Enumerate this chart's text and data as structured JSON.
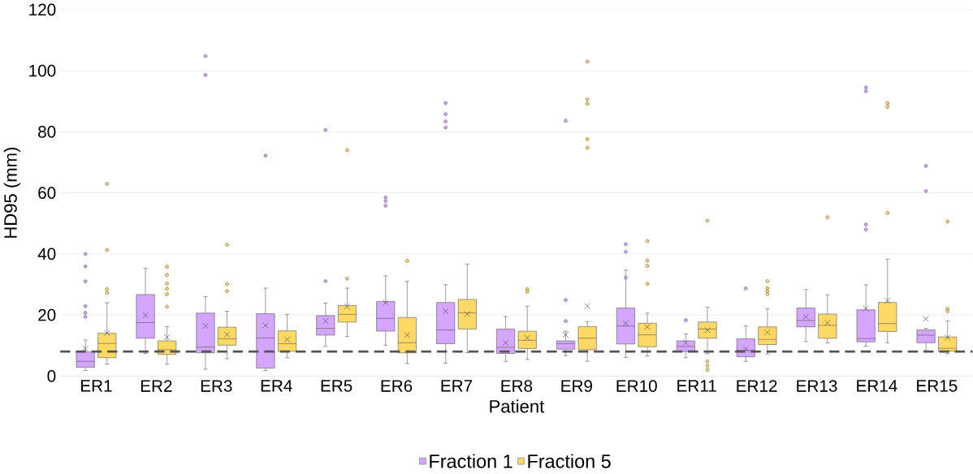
{
  "chart_data": {
    "type": "box",
    "xlabel": "Patient",
    "ylabel": "HD95 (mm)",
    "categories": [
      "ER1",
      "ER2",
      "ER3",
      "ER4",
      "ER5",
      "ER6",
      "ER7",
      "ER8",
      "ER9",
      "ER10",
      "ER11",
      "ER12",
      "ER13",
      "ER14",
      "ER15"
    ],
    "ylim": [
      0,
      120
    ],
    "yticks": [
      0,
      20,
      40,
      60,
      80,
      100,
      120
    ],
    "grid": "y",
    "legend": "bottom",
    "ref_lines": [
      {
        "axis": "y",
        "value": 8,
        "line_style": "dashed",
        "color": "#555555"
      }
    ],
    "series": [
      {
        "name": "Fraction 1",
        "color": "#d5a6ff",
        "boxes": [
          {
            "low": 1.8,
            "q1": 2.9,
            "median": 4.8,
            "q3": 7.9,
            "high": 11.8,
            "mean": 9.0,
            "outliers": [
              40,
              35.9,
              31,
              22.9,
              20.7,
              19.4
            ]
          },
          {
            "low": 7.4,
            "q1": 12.4,
            "median": 17.5,
            "q3": 26.7,
            "high": 35.3,
            "mean": 19.9
          },
          {
            "low": 2.2,
            "q1": 7.6,
            "median": 9.5,
            "q3": 20.6,
            "high": 26,
            "mean": 16.4,
            "outliers": [
              104.8,
              98.6
            ]
          },
          {
            "low": 1.8,
            "q1": 2.6,
            "median": 12.5,
            "q3": 20.4,
            "high": 28.8,
            "mean": 16.6,
            "outliers": [
              72.2
            ]
          },
          {
            "low": 9.7,
            "q1": 13.4,
            "median": 15.6,
            "q3": 19.8,
            "high": 23.9,
            "mean": 18,
            "outliers": [
              31.1,
              80.6
            ]
          },
          {
            "low": 10.1,
            "q1": 14.7,
            "median": 18.9,
            "q3": 24.4,
            "high": 32.8,
            "mean": 24,
            "outliers": [
              58.5,
              57.3,
              55.8
            ]
          },
          {
            "low": 4.2,
            "q1": 10.6,
            "median": 15.1,
            "q3": 24.1,
            "high": 29.9,
            "mean": 21.2,
            "outliers": [
              89.4,
              85.8,
              83.4,
              81.4
            ]
          },
          {
            "low": 4.8,
            "q1": 7.4,
            "median": 9.4,
            "q3": 15.4,
            "high": 19.5,
            "mean": 10.9
          },
          {
            "low": 6.7,
            "q1": 8.8,
            "median": 10.6,
            "q3": 11.5,
            "high": 14.7,
            "mean": 13.5,
            "outliers": [
              18,
              24.9,
              83.6
            ]
          },
          {
            "low": 6.1,
            "q1": 10.5,
            "median": 16.4,
            "q3": 22.3,
            "high": 34.7,
            "mean": 17.3,
            "outliers": [
              32.2,
              40.7,
              43.2
            ]
          },
          {
            "low": 6,
            "q1": 8,
            "median": 9.7,
            "q3": 11.5,
            "high": 13.8,
            "mean": 10.9,
            "outliers": [
              18.3
            ]
          },
          {
            "low": 4.8,
            "q1": 6.3,
            "median": 8.4,
            "q3": 12.2,
            "high": 16.4,
            "mean": 8.8,
            "outliers": [
              28.7
            ]
          },
          {
            "low": 11.3,
            "q1": 16.1,
            "median": 18.2,
            "q3": 22.3,
            "high": 28.3,
            "mean": 19.4
          },
          {
            "low": 9.8,
            "q1": 11.2,
            "median": 12.3,
            "q3": 21.7,
            "high": 29.9,
            "mean": 22.1,
            "outliers": [
              94.5,
              93.3,
              49.6,
              48
            ]
          },
          {
            "low": 8.3,
            "q1": 10.9,
            "median": 13.4,
            "q3": 15.1,
            "high": 15.6,
            "mean": 18.7,
            "outliers": [
              68.8,
              60.6
            ]
          }
        ]
      },
      {
        "name": "Fraction 5",
        "color": "#ffd966",
        "boxes": [
          {
            "low": 3.9,
            "q1": 6,
            "median": 10.7,
            "q3": 14,
            "high": 24,
            "mean": 14.1,
            "outliers": [
              28.5,
              27.3,
              41.3,
              63
            ]
          },
          {
            "low": 3.9,
            "q1": 7.1,
            "median": 8.6,
            "q3": 11.5,
            "high": 16.2,
            "mean": 12.7,
            "outliers": [
              35.8,
              33.1,
              30.3,
              28.6,
              26.8,
              22.7
            ]
          },
          {
            "low": 5.7,
            "q1": 10.1,
            "median": 12.2,
            "q3": 16,
            "high": 21.2,
            "mean": 13.6,
            "outliers": [
              43,
              30.1,
              27.8
            ]
          },
          {
            "low": 6,
            "q1": 8.1,
            "median": 10.6,
            "q3": 14.8,
            "high": 20.2,
            "mean": 12
          },
          {
            "low": 12.9,
            "q1": 17.7,
            "median": 20.2,
            "q3": 23.1,
            "high": 28.8,
            "mean": 22.8,
            "outliers": [
              31.9,
              74
            ]
          },
          {
            "low": 4.1,
            "q1": 7.6,
            "median": 10.9,
            "q3": 19.2,
            "high": 31,
            "mean": 13.4,
            "outliers": [
              37.7
            ]
          },
          {
            "low": 7.6,
            "q1": 15.4,
            "median": 20.7,
            "q3": 25.1,
            "high": 36.7,
            "mean": 20.3
          },
          {
            "low": 5.4,
            "q1": 9,
            "median": 11.7,
            "q3": 14.7,
            "high": 22.9,
            "mean": 12.5,
            "outliers": [
              28.4,
              27.6
            ]
          },
          {
            "low": 4.8,
            "q1": 8.6,
            "median": 12.4,
            "q3": 16.2,
            "high": 17.8,
            "mean": 22.9,
            "outliers": [
              103,
              90.6,
              89.2,
              77.6,
              74.8
            ]
          },
          {
            "low": 6.5,
            "q1": 9.6,
            "median": 13.5,
            "q3": 17.3,
            "high": 20.6,
            "mean": 16.1,
            "outliers": [
              30.2,
              36.1,
              37.8,
              44.2
            ]
          },
          {
            "low": 7.3,
            "q1": 12.4,
            "median": 15.4,
            "q3": 17.7,
            "high": 22.5,
            "mean": 15,
            "outliers": [
              4.8,
              3.4,
              2,
              50.9
            ]
          },
          {
            "low": 7.2,
            "q1": 10.3,
            "median": 12,
            "q3": 16.1,
            "high": 22.1,
            "mean": 14.3,
            "outliers": [
              31.1,
              28.8,
              27.8,
              26.9
            ]
          },
          {
            "low": 10.9,
            "q1": 12.4,
            "median": 16.6,
            "q3": 20.3,
            "high": 26.6,
            "mean": 17.5,
            "outliers": [
              52
            ]
          },
          {
            "low": 10.9,
            "q1": 14.6,
            "median": 17.2,
            "q3": 24.1,
            "high": 38.3,
            "mean": 24.7,
            "outliers": [
              89.4,
              88.2,
              53.4
            ]
          },
          {
            "low": 7.3,
            "q1": 8.2,
            "median": 9.1,
            "q3": 12.8,
            "high": 18,
            "mean": 12.6,
            "outliers": [
              22,
              21.2,
              50.6
            ]
          }
        ]
      }
    ]
  }
}
